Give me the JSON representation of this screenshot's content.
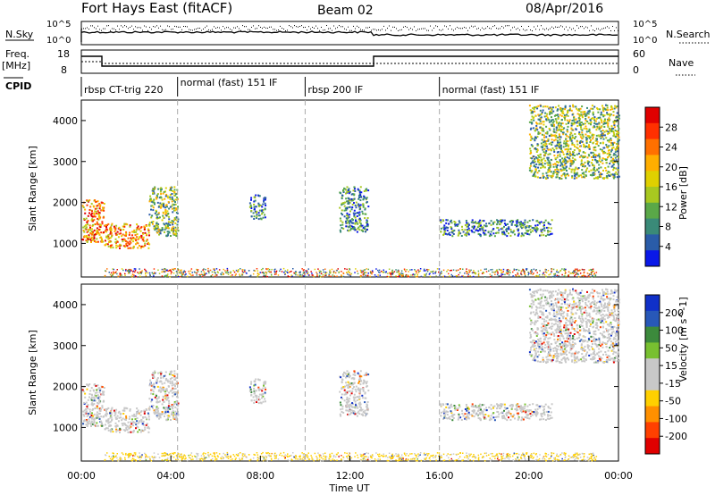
{
  "header": {
    "station": "Fort Hays East (fitACF)",
    "beam": "Beam 02",
    "date": "08/Apr/2016"
  },
  "noise_panel": {
    "left_label": "N.Sky",
    "right_label": "N.Search",
    "tick_top": "10^5",
    "tick_bottom": "10^0",
    "right_tick_top": "10^5",
    "right_tick_bottom": "10^0"
  },
  "freq_panel": {
    "label": "Freq.",
    "unit": "[MHz]",
    "tick_top": "18",
    "tick_bottom": "8",
    "right_label": "Nave",
    "right_tick_top": "60",
    "right_tick_bottom": "0"
  },
  "cpid": {
    "label": "CPID",
    "segments": [
      {
        "name": "rbsp CT-trig 220",
        "start": 0.0,
        "end": 4.3
      },
      {
        "name": "normal (fast) 151 IF",
        "start": 4.3,
        "end": 10.0
      },
      {
        "name": "rbsp 200 IF",
        "start": 10.0,
        "end": 16.0
      },
      {
        "name": "normal (fast) 151 IF",
        "start": 16.0,
        "end": 24.0
      }
    ]
  },
  "chart_data": [
    {
      "type": "heatmap",
      "name": "power",
      "ylabel": "Slant Range [km]",
      "xlabel": "",
      "ylim": [
        180,
        4500
      ],
      "yticks": [
        "1000",
        "2000",
        "3000",
        "4000"
      ],
      "colorbar_label": "Power [dB]",
      "colorbar_ticks": [
        "28",
        "24",
        "20",
        "16",
        "12",
        "8",
        "4"
      ],
      "colorbar_colors": [
        "#e00000",
        "#ff3000",
        "#ff7000",
        "#ffae00",
        "#e0d000",
        "#a8c820",
        "#5aa848",
        "#3a8a78",
        "#2a5ca8",
        "#0a18e8"
      ],
      "scatter_regions": [
        {
          "t0": 0.0,
          "t1": 1.0,
          "r0": 1050,
          "r1": 2100,
          "level": "high"
        },
        {
          "t0": 1.0,
          "t1": 3.0,
          "r0": 900,
          "r1": 1500,
          "level": "high"
        },
        {
          "t0": 3.0,
          "t1": 4.3,
          "r0": 1200,
          "r1": 2400,
          "level": "mid"
        },
        {
          "t0": 7.5,
          "t1": 8.2,
          "r0": 1600,
          "r1": 2200,
          "level": "low"
        },
        {
          "t0": 11.5,
          "t1": 12.8,
          "r0": 1300,
          "r1": 2400,
          "level": "low"
        },
        {
          "t0": 16.0,
          "t1": 21.0,
          "r0": 1200,
          "r1": 1600,
          "level": "low"
        },
        {
          "t0": 20.0,
          "t1": 24.0,
          "r0": 2600,
          "r1": 4400,
          "level": "mid"
        }
      ]
    },
    {
      "type": "heatmap",
      "name": "velocity",
      "ylabel": "Slant Range [km]",
      "xlabel": "Time UT",
      "ylim": [
        180,
        4500
      ],
      "yticks": [
        "1000",
        "2000",
        "3000",
        "4000"
      ],
      "colorbar_label": "Velocity [m s^-1]",
      "colorbar_ticks": [
        "200",
        "100",
        "50",
        "15",
        "-15",
        "-50",
        "-100",
        "-200"
      ],
      "colorbar_colors": [
        "#1030c8",
        "#2858b8",
        "#3c8a3c",
        "#78c030",
        "#c8c8c8",
        "#c8c8c8",
        "#ffd000",
        "#ff9000",
        "#ff4000",
        "#e00000"
      ],
      "xticks": [
        "00:00",
        "04:00",
        "08:00",
        "12:00",
        "16:00",
        "20:00",
        "00:00"
      ],
      "xlim": [
        0,
        24
      ]
    }
  ]
}
